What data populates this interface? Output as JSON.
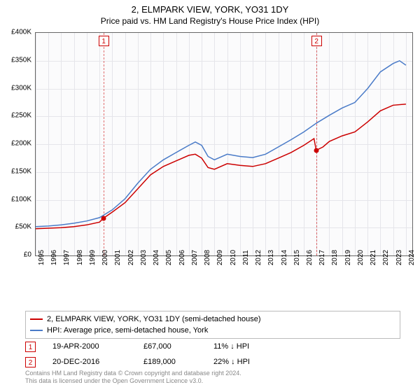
{
  "title": "2, ELMPARK VIEW, YORK, YO31 1DY",
  "subtitle": "Price paid vs. HM Land Registry's House Price Index (HPI)",
  "chart": {
    "type": "line",
    "background_color": "#fbfbfc",
    "grid_color": "#e5e5ea",
    "border_color": "#666666",
    "x_axis": {
      "min": 1995,
      "max": 2024.5,
      "ticks": [
        1995,
        1996,
        1997,
        1998,
        1999,
        2000,
        2001,
        2002,
        2003,
        2004,
        2005,
        2006,
        2007,
        2008,
        2009,
        2010,
        2011,
        2012,
        2013,
        2014,
        2015,
        2016,
        2017,
        2018,
        2019,
        2020,
        2021,
        2022,
        2023,
        2024
      ],
      "label_fontsize": 10
    },
    "y_axis": {
      "min": 0,
      "max": 400000,
      "ticks": [
        0,
        50000,
        100000,
        150000,
        200000,
        250000,
        300000,
        350000,
        400000
      ],
      "tick_labels": [
        "£0",
        "£50K",
        "£100K",
        "£150K",
        "£200K",
        "£250K",
        "£300K",
        "£350K",
        "£400K"
      ],
      "label_fontsize": 10
    },
    "series": [
      {
        "name": "price_paid",
        "label": "2, ELMPARK VIEW, YORK, YO31 1DY (semi-detached house)",
        "color": "#cc0000",
        "line_width": 1.5,
        "points": [
          [
            1995,
            48000
          ],
          [
            1996,
            49000
          ],
          [
            1997,
            50000
          ],
          [
            1998,
            52000
          ],
          [
            1999,
            55000
          ],
          [
            2000,
            60000
          ],
          [
            2000.3,
            67000
          ],
          [
            2001,
            78000
          ],
          [
            2002,
            95000
          ],
          [
            2003,
            120000
          ],
          [
            2004,
            145000
          ],
          [
            2005,
            160000
          ],
          [
            2006,
            170000
          ],
          [
            2007,
            180000
          ],
          [
            2007.5,
            182000
          ],
          [
            2008,
            175000
          ],
          [
            2008.5,
            158000
          ],
          [
            2009,
            155000
          ],
          [
            2010,
            165000
          ],
          [
            2011,
            162000
          ],
          [
            2012,
            160000
          ],
          [
            2013,
            165000
          ],
          [
            2014,
            175000
          ],
          [
            2015,
            185000
          ],
          [
            2016,
            198000
          ],
          [
            2016.8,
            210000
          ],
          [
            2016.97,
            189000
          ],
          [
            2017.5,
            195000
          ],
          [
            2018,
            205000
          ],
          [
            2019,
            215000
          ],
          [
            2020,
            222000
          ],
          [
            2021,
            240000
          ],
          [
            2022,
            260000
          ],
          [
            2023,
            270000
          ],
          [
            2024,
            272000
          ]
        ]
      },
      {
        "name": "hpi",
        "label": "HPI: Average price, semi-detached house, York",
        "color": "#4a7bc8",
        "line_width": 1.5,
        "points": [
          [
            1995,
            52000
          ],
          [
            1996,
            53000
          ],
          [
            1997,
            55000
          ],
          [
            1998,
            58000
          ],
          [
            1999,
            62000
          ],
          [
            2000,
            68000
          ],
          [
            2001,
            82000
          ],
          [
            2002,
            102000
          ],
          [
            2003,
            130000
          ],
          [
            2004,
            155000
          ],
          [
            2005,
            172000
          ],
          [
            2006,
            185000
          ],
          [
            2007,
            198000
          ],
          [
            2007.5,
            204000
          ],
          [
            2008,
            198000
          ],
          [
            2008.5,
            178000
          ],
          [
            2009,
            172000
          ],
          [
            2010,
            182000
          ],
          [
            2011,
            178000
          ],
          [
            2012,
            176000
          ],
          [
            2013,
            182000
          ],
          [
            2014,
            195000
          ],
          [
            2015,
            208000
          ],
          [
            2016,
            222000
          ],
          [
            2017,
            238000
          ],
          [
            2018,
            252000
          ],
          [
            2019,
            265000
          ],
          [
            2020,
            275000
          ],
          [
            2021,
            300000
          ],
          [
            2022,
            330000
          ],
          [
            2023,
            345000
          ],
          [
            2023.5,
            350000
          ],
          [
            2024,
            342000
          ]
        ]
      }
    ],
    "sale_markers": [
      {
        "n": "1",
        "x": 2000.3,
        "y": 67000
      },
      {
        "n": "2",
        "x": 2016.97,
        "y": 189000
      }
    ]
  },
  "legend": {
    "items": [
      {
        "color": "#cc0000",
        "label": "2, ELMPARK VIEW, YORK, YO31 1DY (semi-detached house)"
      },
      {
        "color": "#4a7bc8",
        "label": "HPI: Average price, semi-detached house, York"
      }
    ]
  },
  "sales_table": {
    "rows": [
      {
        "n": "1",
        "date": "19-APR-2000",
        "price": "£67,000",
        "delta": "11% ↓ HPI"
      },
      {
        "n": "2",
        "date": "20-DEC-2016",
        "price": "£189,000",
        "delta": "22% ↓ HPI"
      }
    ]
  },
  "footer": {
    "line1": "Contains HM Land Registry data © Crown copyright and database right 2024.",
    "line2": "This data is licensed under the Open Government Licence v3.0."
  }
}
